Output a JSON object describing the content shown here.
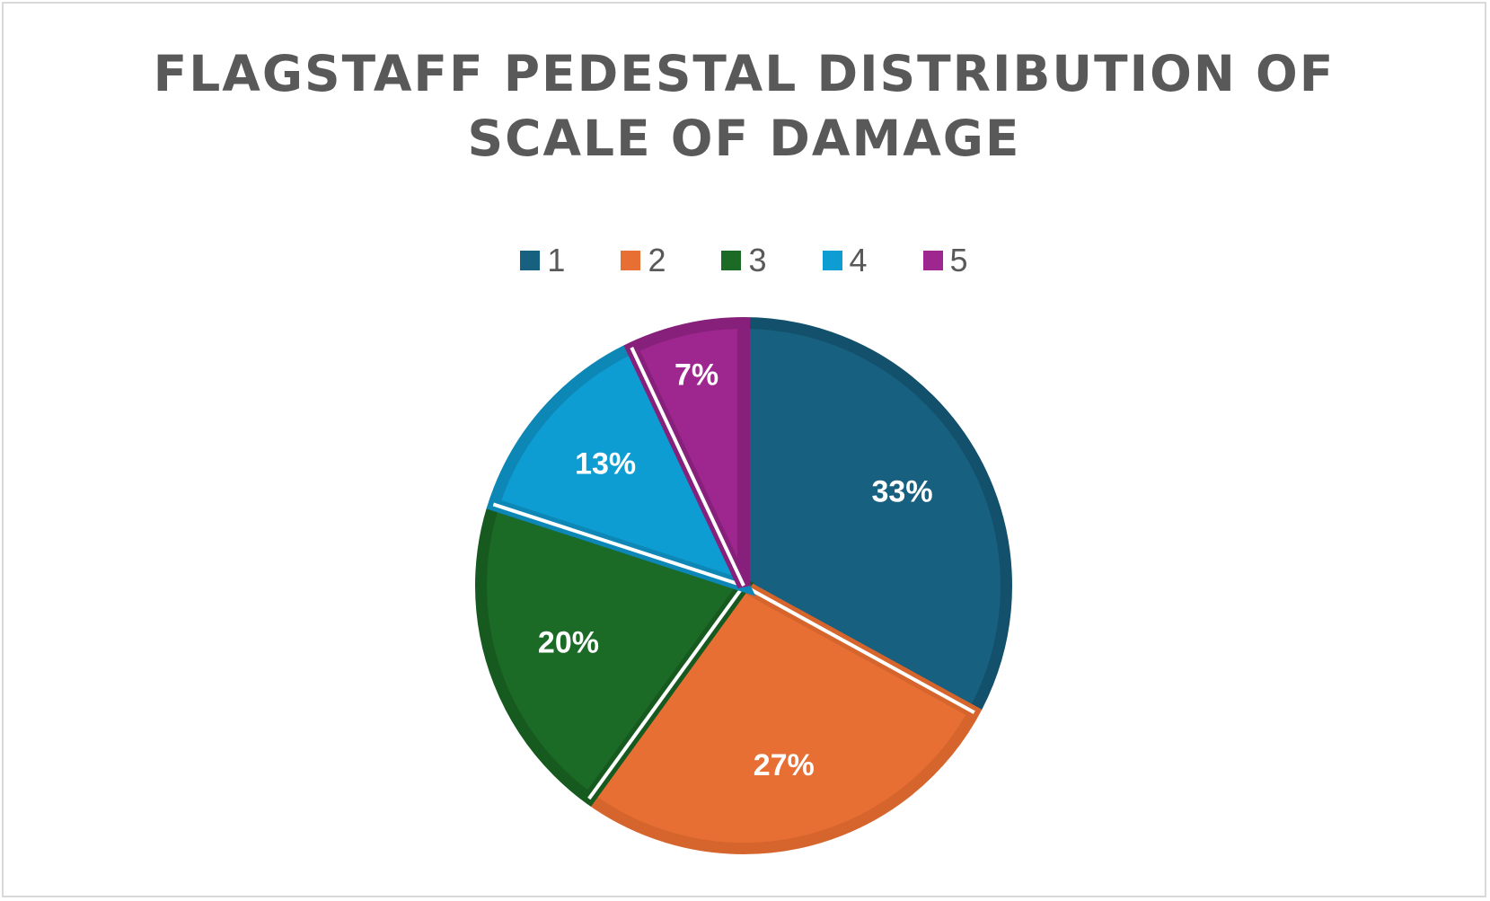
{
  "chart_data": {
    "type": "pie",
    "title": "FLAGSTAFF PEDESTAL DISTRIBUTION OF SCALE OF DAMAGE",
    "title_lines": [
      "FLAGSTAFF PEDESTAL DISTRIBUTION OF",
      "SCALE OF DAMAGE"
    ],
    "categories": [
      "1",
      "2",
      "3",
      "4",
      "5"
    ],
    "values": [
      33,
      27,
      20,
      13,
      7
    ],
    "labels": [
      "33%",
      "27%",
      "20%",
      "13%",
      "7%"
    ],
    "colors": [
      "#17607f",
      "#e86f33",
      "#1b6b26",
      "#0e9dd3",
      "#9e278f"
    ],
    "border_colors": [
      "#12506b",
      "#d5652d",
      "#175a20",
      "#0c87b6",
      "#86207a"
    ],
    "legend_position": "top",
    "start_angle": "12 o'clock",
    "direction": "clockwise"
  }
}
